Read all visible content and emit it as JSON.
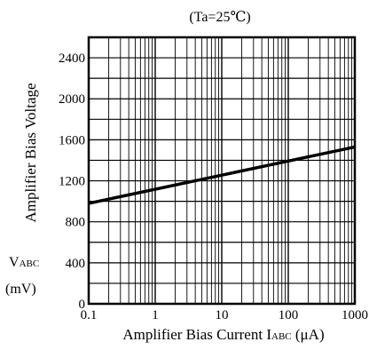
{
  "chart_data": {
    "type": "line",
    "title": "(Ta=25℃)",
    "xlabel": "Amplifier Bias Current",
    "xlabel_symbol": "I",
    "xlabel_symbol_sub": "ABC",
    "xlabel_unit": "(μA)",
    "ylabel": "Amplifier Bias Voltage",
    "ylabel_symbol": "V",
    "ylabel_symbol_sub": "ABC",
    "ylabel_unit": "(mV)",
    "x_scale": "log",
    "xlim": [
      0.1,
      1000
    ],
    "ylim": [
      0,
      2600
    ],
    "x_ticks": [
      0.1,
      1,
      10,
      100,
      1000
    ],
    "x_tick_labels": [
      "0.1",
      "1",
      "10",
      "100",
      "1000"
    ],
    "y_ticks": [
      0,
      400,
      800,
      1200,
      1600,
      2000,
      2400
    ],
    "y_tick_labels": [
      "0",
      "400",
      "800",
      "1200",
      "1600",
      "2000",
      "2400"
    ],
    "y_minor_step": 200,
    "grid": true,
    "line_color": "#000000",
    "series": [
      {
        "x": [
          0.1,
          1000
        ],
        "y": [
          980,
          1530
        ]
      }
    ]
  }
}
